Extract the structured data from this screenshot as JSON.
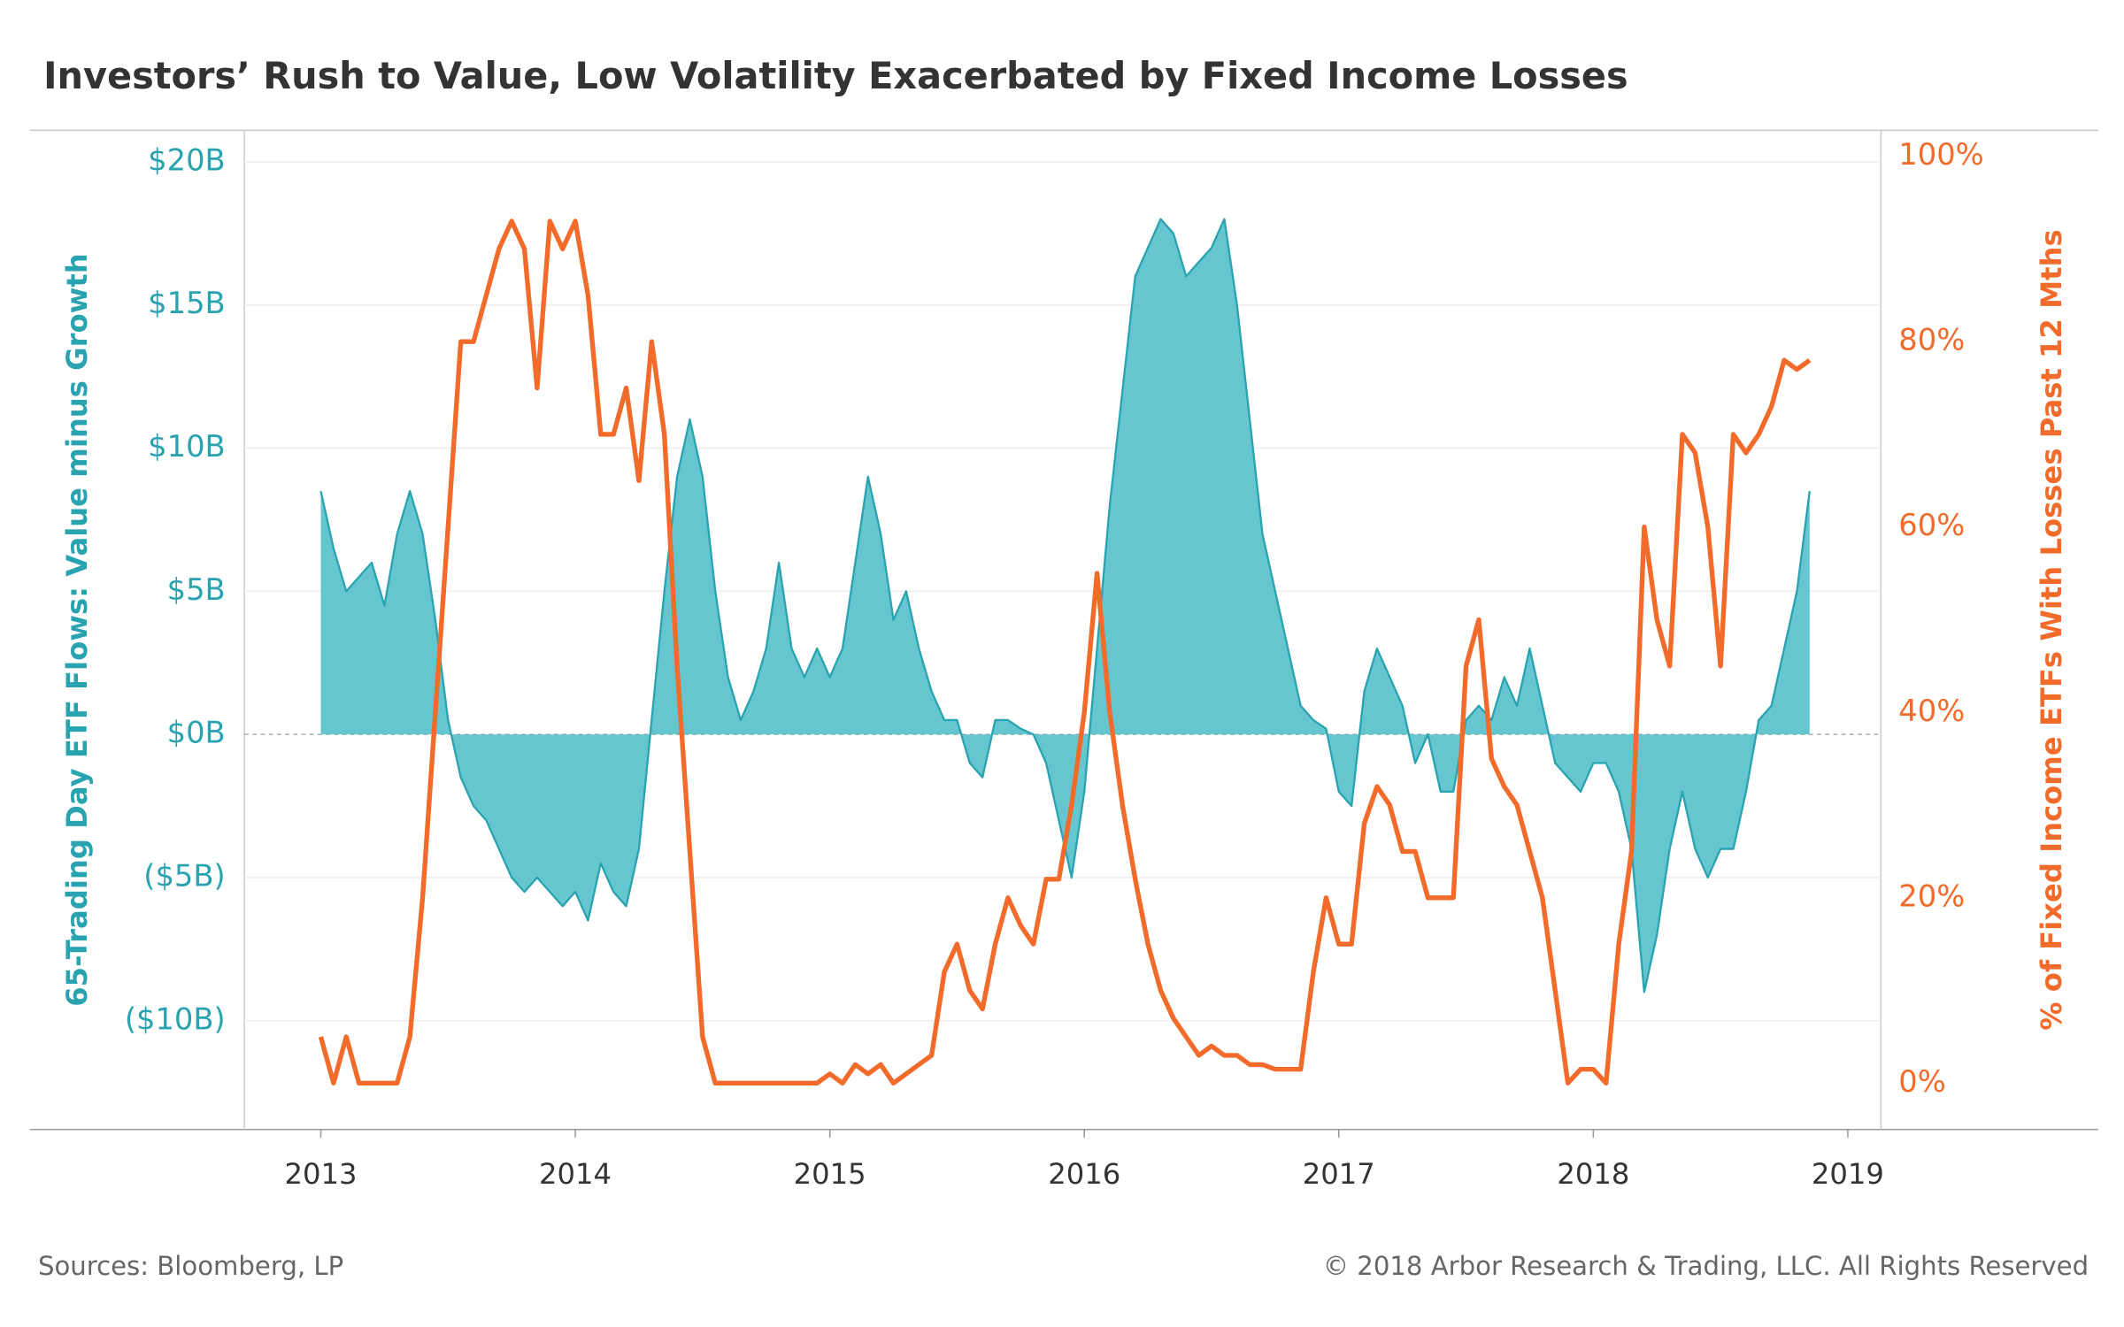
{
  "chart_data": {
    "type": "area-line",
    "title": "Investors’ Rush to Value, Low Volatility Exacerbated by Fixed Income Losses",
    "y_label": "65-Trading Day ETF Flows: Value minus Growth",
    "y2_label": "% of Fixed Income ETFs With Losses Past 12 Mths",
    "source": "Sources: Bloomberg, LP",
    "copyright": "© 2018 Arbor Research & Trading, LLC. All Rights Reserved",
    "x": [
      2013,
      2013.05,
      2013.1,
      2013.15,
      2013.2,
      2013.25,
      2013.3,
      2013.35,
      2013.4,
      2013.45,
      2013.5,
      2013.55,
      2013.6,
      2013.65,
      2013.7,
      2013.75,
      2013.8,
      2013.85,
      2013.9,
      2013.95,
      2014,
      2014.05,
      2014.1,
      2014.15,
      2014.2,
      2014.25,
      2014.3,
      2014.35,
      2014.4,
      2014.45,
      2014.5,
      2014.55,
      2014.6,
      2014.65,
      2014.7,
      2014.75,
      2014.8,
      2014.85,
      2014.9,
      2014.95,
      2015,
      2015.05,
      2015.1,
      2015.15,
      2015.2,
      2015.25,
      2015.3,
      2015.35,
      2015.4,
      2015.45,
      2015.5,
      2015.55,
      2015.6,
      2015.65,
      2015.7,
      2015.75,
      2015.8,
      2015.85,
      2015.9,
      2015.95,
      2016,
      2016.05,
      2016.1,
      2016.15,
      2016.2,
      2016.25,
      2016.3,
      2016.35,
      2016.4,
      2016.45,
      2016.5,
      2016.55,
      2016.6,
      2016.65,
      2016.7,
      2016.75,
      2016.8,
      2016.85,
      2016.9,
      2016.95,
      2017,
      2017.05,
      2017.1,
      2017.15,
      2017.2,
      2017.25,
      2017.3,
      2017.35,
      2017.4,
      2017.45,
      2017.5,
      2017.55,
      2017.6,
      2017.65,
      2017.7,
      2017.75,
      2017.8,
      2017.85,
      2017.9,
      2017.95,
      2018,
      2018.05,
      2018.1,
      2018.15,
      2018.2,
      2018.25,
      2018.3,
      2018.35,
      2018.4,
      2018.45,
      2018.5,
      2018.55,
      2018.6,
      2018.65,
      2018.7,
      2018.75,
      2018.8,
      2018.85
    ],
    "series": [
      {
        "name": "Value minus Growth",
        "type": "area",
        "color": "#2aa3b0",
        "fill": "#4bbcc8",
        "values": [
          8.5,
          6.5,
          5,
          5.5,
          6,
          4.5,
          7,
          8.5,
          7,
          4,
          0.5,
          -1.5,
          -2.5,
          -3,
          -4,
          -5,
          -5.5,
          -5,
          -5.5,
          -6,
          -5.5,
          -6.5,
          -4.5,
          -5.5,
          -6,
          -4,
          0.5,
          5,
          9,
          11,
          9,
          5,
          2,
          0.5,
          1.5,
          3,
          6,
          3,
          2,
          3,
          2,
          3,
          6,
          9,
          7,
          4,
          5,
          3,
          1.5,
          0.5,
          0.5,
          -1,
          -1.5,
          0.5,
          0.5,
          0.2,
          0,
          -1,
          -3,
          -5,
          -2,
          3,
          8,
          12,
          16,
          17,
          18,
          17.5,
          16,
          16.5,
          17,
          18,
          15,
          11,
          7,
          5,
          3,
          1,
          0.5,
          0.2,
          -2,
          -2.5,
          1.5,
          3,
          2,
          1,
          -1,
          0,
          -2,
          -2,
          0.5,
          1,
          0.5,
          2,
          1,
          3,
          1,
          -1,
          -1.5,
          -2,
          -1,
          -1,
          -2,
          -4,
          -9,
          -7,
          -4,
          -2,
          -4,
          -5,
          -4,
          -4,
          -2,
          0.5,
          1,
          3,
          5,
          8.5
        ]
      },
      {
        "name": "% of Fixed Income ETFs With Losses",
        "type": "line",
        "axis": "y2",
        "color": "#f26b2a",
        "values": [
          5,
          0,
          5,
          0,
          0,
          0,
          0,
          5,
          20,
          40,
          60,
          80,
          80,
          85,
          90,
          93,
          90,
          75,
          93,
          90,
          93,
          85,
          70,
          70,
          75,
          65,
          80,
          70,
          45,
          25,
          5,
          0,
          0,
          0,
          0,
          0,
          0,
          0,
          0,
          0,
          1,
          0,
          2,
          1,
          2,
          0,
          1,
          2,
          3,
          12,
          15,
          10,
          8,
          15,
          20,
          17,
          15,
          22,
          22,
          30,
          40,
          55,
          40,
          30,
          22,
          15,
          10,
          7,
          5,
          3,
          4,
          3,
          3,
          2,
          2,
          1.5,
          1.5,
          1.5,
          12,
          20,
          15,
          15,
          28,
          32,
          30,
          25,
          25,
          20,
          20,
          20,
          45,
          50,
          35,
          32,
          30,
          25,
          20,
          10,
          0,
          1.5,
          1.5,
          0,
          15,
          25,
          60,
          50,
          45,
          70,
          68,
          60,
          45,
          70,
          68,
          70,
          73,
          78,
          77,
          78
        ]
      }
    ],
    "xlim": [
      2012.7,
      2019.13
    ],
    "xticks": [
      2013,
      2014,
      2015,
      2016,
      2017,
      2018,
      2019
    ],
    "ylim": [
      -13.8,
      21.1
    ],
    "yticks": [
      {
        "value": -10,
        "label": "($10B)"
      },
      {
        "value": -5,
        "label": "($5B)"
      },
      {
        "value": 0,
        "label": "$0B"
      },
      {
        "value": 5,
        "label": "$5B"
      },
      {
        "value": 10,
        "label": "$10B"
      },
      {
        "value": 15,
        "label": "$15B"
      },
      {
        "value": 20,
        "label": "$20B"
      }
    ],
    "y2lim": [
      -5,
      102.8
    ],
    "y2ticks": [
      {
        "value": 0,
        "label": "0%"
      },
      {
        "value": 20,
        "label": "20%"
      },
      {
        "value": 40,
        "label": "40%"
      },
      {
        "value": 60,
        "label": "60%"
      },
      {
        "value": 80,
        "label": "80%"
      },
      {
        "value": 100,
        "label": "100%"
      }
    ],
    "grid": true
  }
}
